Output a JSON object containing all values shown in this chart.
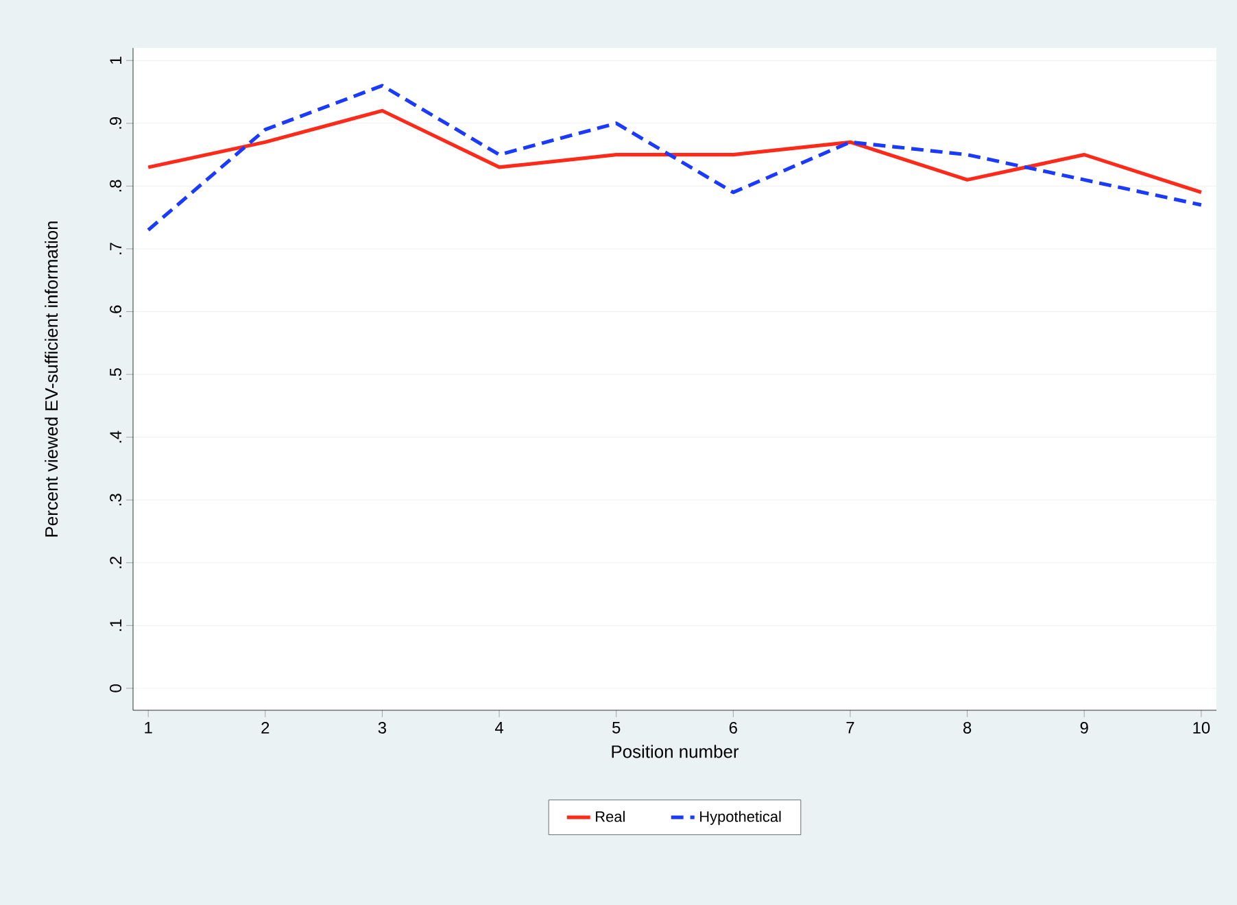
{
  "chart_data": {
    "type": "line",
    "xlabel": "Position number",
    "ylabel": "Percent viewed EV-sufficient information",
    "x": [
      1,
      2,
      3,
      4,
      5,
      6,
      7,
      8,
      9,
      10
    ],
    "series": [
      {
        "name": "Real",
        "color": "#ff2a1a",
        "line_style": "solid",
        "values": [
          0.83,
          0.87,
          0.92,
          0.83,
          0.85,
          0.85,
          0.87,
          0.81,
          0.85,
          0.79
        ]
      },
      {
        "name": "Hypothetical",
        "color": "#1a3bff",
        "line_style": "dashed",
        "values": [
          0.73,
          0.89,
          0.96,
          0.85,
          0.9,
          0.79,
          0.87,
          0.85,
          0.81,
          0.77
        ]
      }
    ],
    "xlim": [
      0.87,
      10.13
    ],
    "ylim": [
      -0.035,
      1.02
    ],
    "xticks": [
      1,
      2,
      3,
      4,
      5,
      6,
      7,
      8,
      9,
      10
    ],
    "yticks": [
      0,
      {
        "value": 0.1,
        "label": ".1"
      },
      {
        "value": 0.2,
        "label": ".2"
      },
      {
        "value": 0.3,
        "label": ".3"
      },
      {
        "value": 0.4,
        "label": ".4"
      },
      {
        "value": 0.5,
        "label": ".5"
      },
      {
        "value": 0.6,
        "label": ".6"
      },
      {
        "value": 0.7,
        "label": ".7"
      },
      {
        "value": 0.8,
        "label": ".8"
      },
      {
        "value": 0.9,
        "label": ".9"
      },
      1
    ],
    "grid": "y",
    "legend": "bottom",
    "marker": "none"
  }
}
